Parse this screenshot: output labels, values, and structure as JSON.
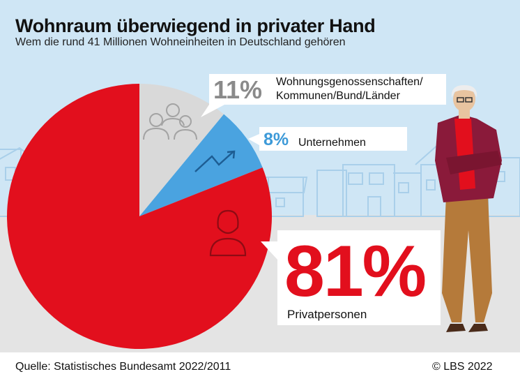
{
  "title": "Wohnraum überwiegend in privater Hand",
  "subtitle": "Wem die rund 41 Millionen Wohneinheiten in Deutschland gehören",
  "source": "Quelle: Statistisches Bundesamt 2022/2011",
  "copyright": "© LBS 2022",
  "colors": {
    "private": "#e20f1d",
    "companies": "#4aa3e0",
    "cooperatives": "#d9d9d9",
    "sky": "#cfe6f5",
    "ground": "#e3e3e3"
  },
  "chart_data": {
    "type": "pie",
    "title": "Wohnraum überwiegend in privater Hand",
    "subtitle": "Wem die rund 41 Millionen Wohneinheiten in Deutschland gehören",
    "slices": [
      {
        "label": "Wohnungsgenossenschaften/\nKommunen/Bund/Länder",
        "value": 11,
        "display": "11%",
        "color": "#d9d9d9",
        "icon": "group-of-people-icon"
      },
      {
        "label": "Unternehmen",
        "value": 8,
        "display": "8%",
        "color": "#4aa3e0",
        "icon": "trend-arrow-icon"
      },
      {
        "label": "Privatpersonen",
        "value": 81,
        "display": "81%",
        "color": "#e20f1d",
        "icon": "person-icon"
      }
    ]
  }
}
